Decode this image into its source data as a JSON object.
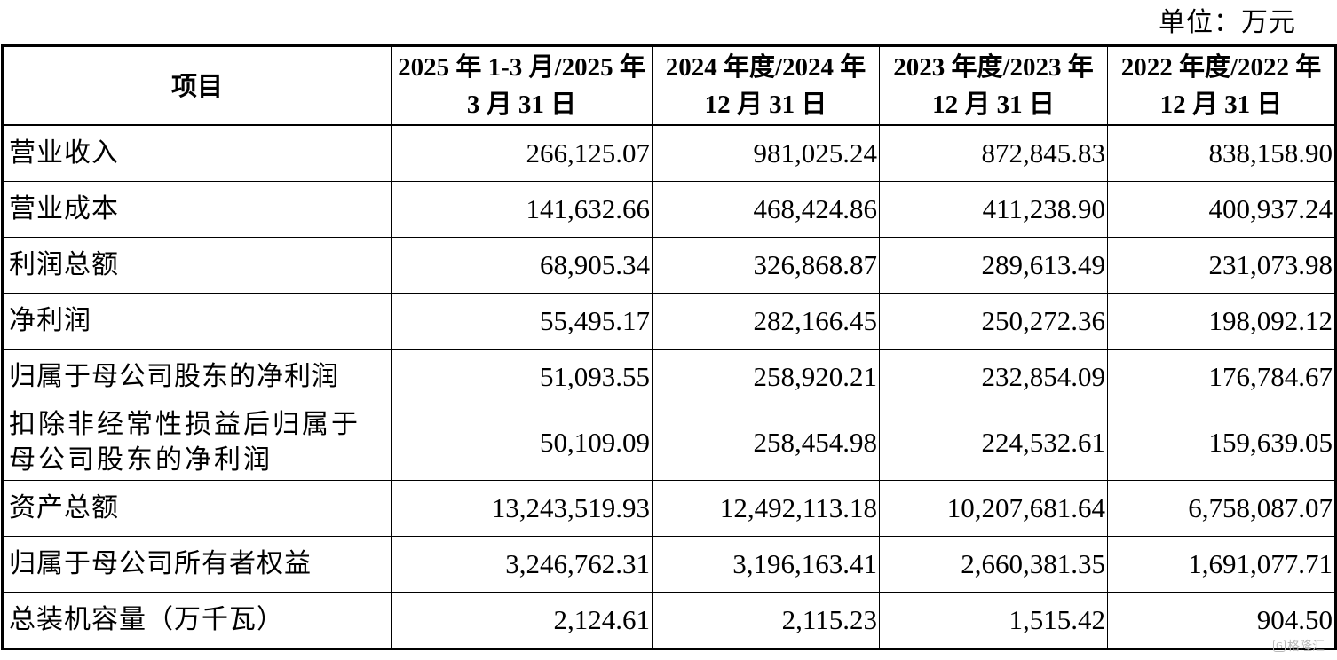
{
  "unit_label": "单位：万元",
  "header": {
    "item": "项目",
    "columns": [
      "2025 年 1-3 月/2025 年 3 月 31 日",
      "2024 年度/2024 年 12 月 31 日",
      "2023 年度/2023 年 12 月 31 日",
      "2022 年度/2022 年 12 月 31 日"
    ]
  },
  "rows": [
    {
      "label": "营业收入",
      "values": [
        "266,125.07",
        "981,025.24",
        "872,845.83",
        "838,158.90"
      ]
    },
    {
      "label": "营业成本",
      "values": [
        "141,632.66",
        "468,424.86",
        "411,238.90",
        "400,937.24"
      ]
    },
    {
      "label": "利润总额",
      "values": [
        "68,905.34",
        "326,868.87",
        "289,613.49",
        "231,073.98"
      ]
    },
    {
      "label": "净利润",
      "values": [
        "55,495.17",
        "282,166.45",
        "250,272.36",
        "198,092.12"
      ]
    },
    {
      "label": "归属于母公司股东的净利润",
      "values": [
        "51,093.55",
        "258,920.21",
        "232,854.09",
        "176,784.67"
      ]
    },
    {
      "label": "扣除非经常性损益后归属于母公司股东的净利润",
      "values": [
        "50,109.09",
        "258,454.98",
        "224,532.61",
        "159,639.05"
      ]
    },
    {
      "label": "资产总额",
      "values": [
        "13,243,519.93",
        "12,492,113.18",
        "10,207,681.64",
        "6,758,087.07"
      ]
    },
    {
      "label": "归属于母公司所有者权益",
      "values": [
        "3,246,762.31",
        "3,196,163.41",
        "2,660,381.35",
        "1,691,077.71"
      ]
    },
    {
      "label": "总装机容量（万千瓦）",
      "values": [
        "2,124.61",
        "2,115.23",
        "1,515.42",
        "904.50"
      ]
    }
  ],
  "watermark": {
    "text": "格隆汇",
    "icon": "gelonghui-logo-icon"
  }
}
